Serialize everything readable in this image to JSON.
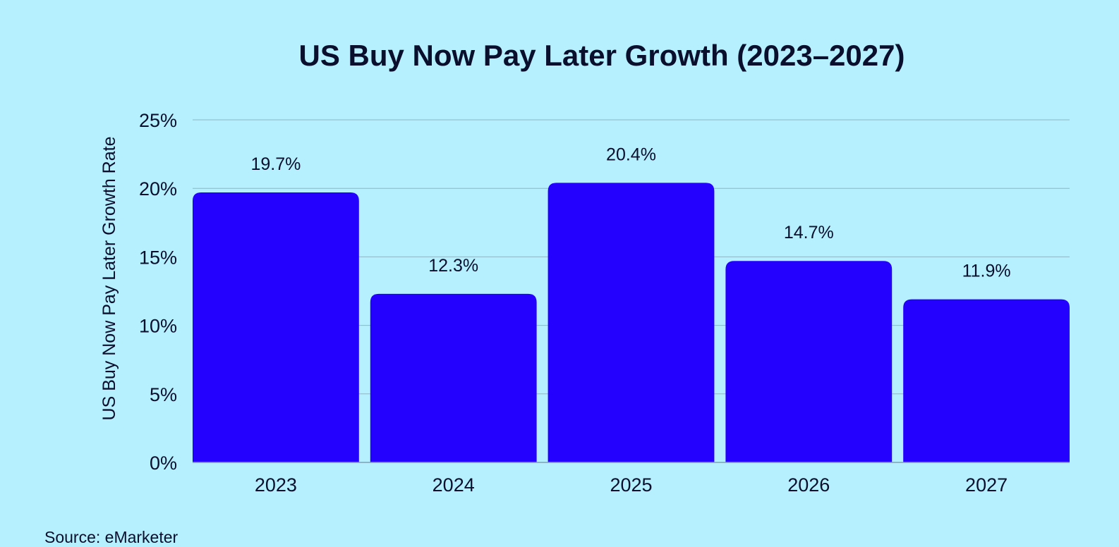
{
  "chart_data": {
    "type": "bar",
    "title": "US Buy Now Pay Later Growth (2023–2027)",
    "xlabel": "",
    "ylabel": "US Buy Now Pay Later Growth Rate",
    "categories": [
      "2023",
      "2024",
      "2025",
      "2026",
      "2027"
    ],
    "values": [
      19.7,
      12.3,
      20.4,
      14.7,
      11.9
    ],
    "value_labels": [
      "19.7%",
      "12.3%",
      "20.4%",
      "14.7%",
      "11.9%"
    ],
    "ylim": [
      0,
      25
    ],
    "yticks": [
      0,
      5,
      10,
      15,
      20,
      25
    ],
    "ytick_labels": [
      "0%",
      "5%",
      "10%",
      "15%",
      "20%",
      "25%"
    ],
    "grid": true,
    "legend": "none",
    "bar_color": "#2400ff",
    "background_color": "#b6f0fe",
    "source": "Source: eMarketer"
  }
}
